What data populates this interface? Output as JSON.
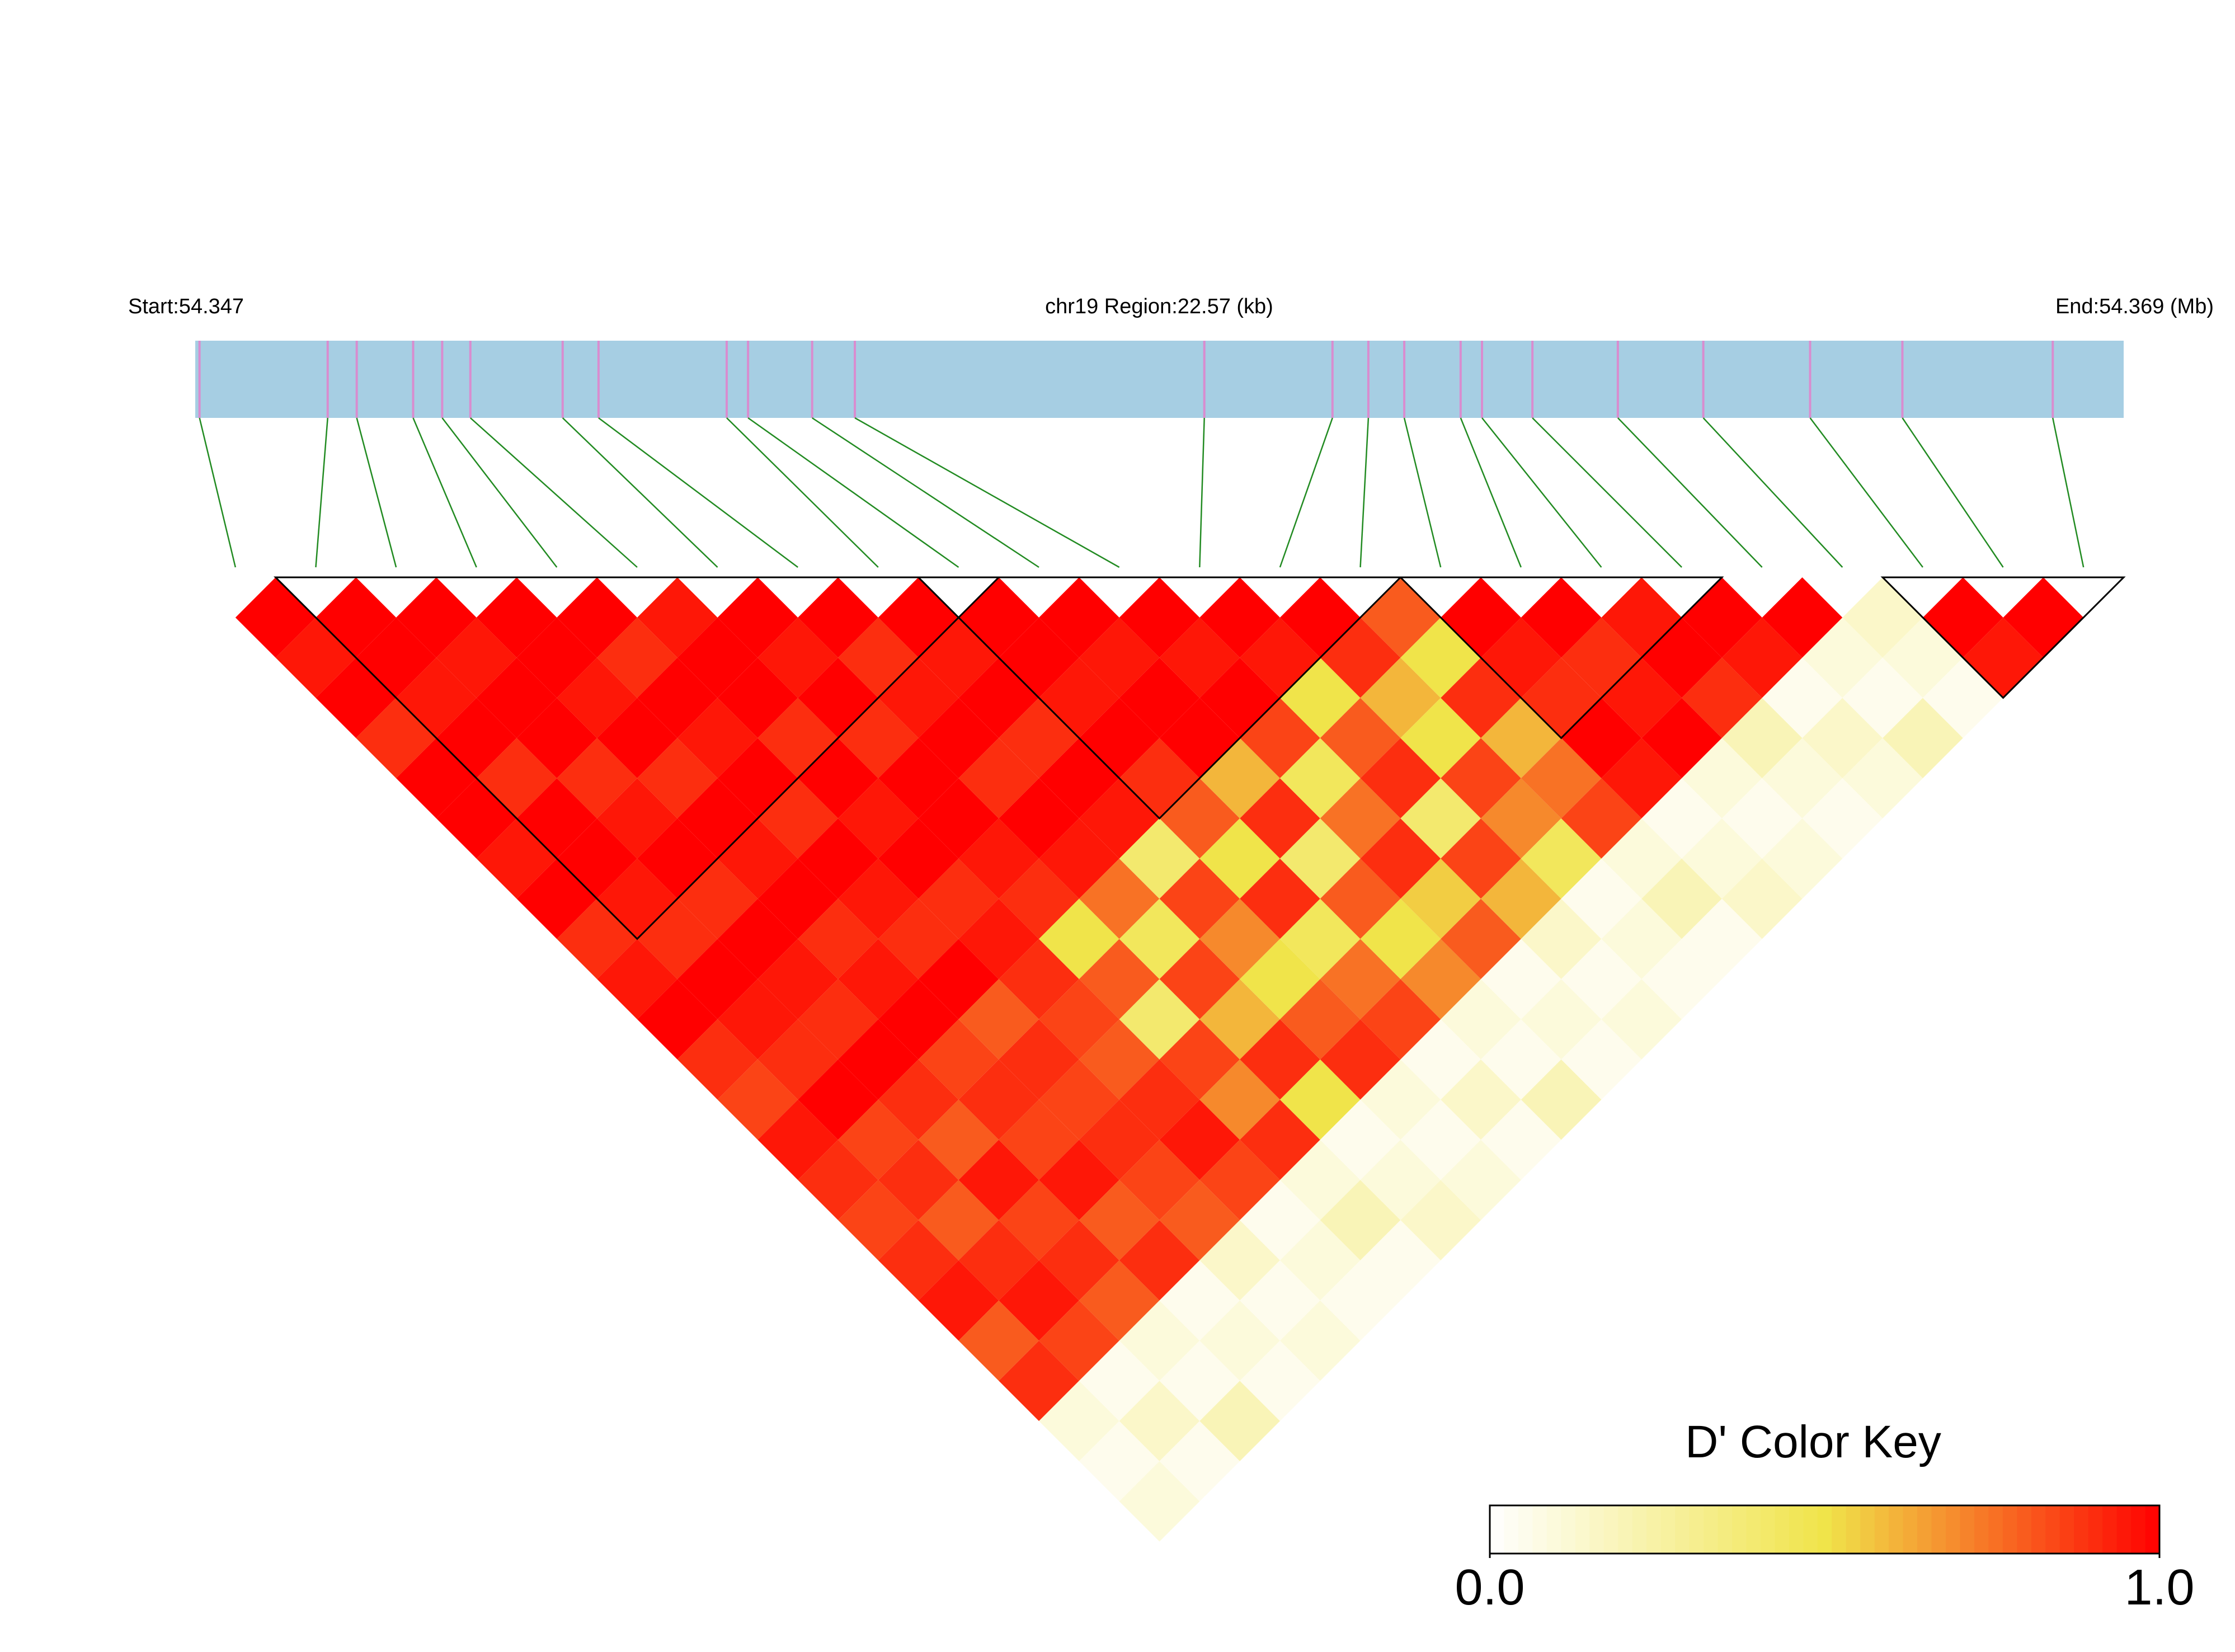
{
  "chart_data": {
    "type": "ld_heatmap",
    "start_label": "Start:54.347",
    "region_label": "chr19 Region:22.57 (kb)",
    "end_label": "End:54.369 (Mb)",
    "key_title": "D' Color Key",
    "xlim": [
      54.347,
      54.36957
    ],
    "snp_positions": [
      54.34705,
      54.34855,
      54.34889,
      54.34955,
      54.34989,
      54.35022,
      54.3513,
      54.35172,
      54.35322,
      54.35347,
      54.35422,
      54.35472,
      54.35881,
      54.36031,
      54.36073,
      54.36115,
      54.36181,
      54.36206,
      54.36265,
      54.36365,
      54.36465,
      54.3659,
      54.36698,
      54.36874
    ],
    "ld": [
      [
        1,
        0.95,
        1,
        0.9,
        1,
        1,
        0.95,
        1,
        0.9,
        0.95,
        1,
        0.9,
        0.85,
        0.95,
        0.9,
        0.85,
        0.9,
        0.95,
        0.8,
        0.9,
        0.1,
        0.05,
        0.1
      ],
      [
        1,
        1,
        0.95,
        1,
        0.9,
        1,
        1,
        0.95,
        0.9,
        1,
        0.95,
        0.9,
        1,
        0.85,
        0.9,
        0.8,
        0.9,
        0.95,
        0.85,
        0.05,
        0.15,
        0.05
      ],
      [
        1,
        0.95,
        1,
        1,
        0.9,
        0.95,
        1,
        0.9,
        1,
        0.95,
        0.9,
        1,
        0.9,
        0.8,
        0.95,
        0.85,
        0.9,
        0.8,
        0.1,
        0.05,
        0.2
      ],
      [
        1,
        1,
        0.95,
        1,
        0.9,
        1,
        0.95,
        1,
        0.9,
        0.95,
        1,
        0.85,
        0.9,
        0.85,
        0.95,
        0.8,
        0.9,
        0.05,
        0.1,
        0.05
      ],
      [
        1,
        0.9,
        1,
        0.95,
        1,
        0.9,
        1,
        0.95,
        0.9,
        1,
        0.8,
        0.9,
        0.85,
        0.9,
        0.85,
        0.8,
        0.15,
        0.05,
        0.1
      ],
      [
        0.95,
        1,
        1,
        0.9,
        1,
        0.95,
        1,
        0.9,
        0.95,
        0.9,
        0.85,
        0.8,
        0.9,
        0.95,
        0.85,
        0.05,
        0.1,
        0.05
      ],
      [
        1,
        0.95,
        1,
        0.9,
        1,
        1,
        0.95,
        0.9,
        0.5,
        0.8,
        0.4,
        0.85,
        0.7,
        0.9,
        0.1,
        0.2,
        0.05
      ],
      [
        1,
        0.9,
        0.95,
        1,
        0.9,
        1,
        0.95,
        0.75,
        0.45,
        0.85,
        0.6,
        0.9,
        0.5,
        0.05,
        0.1,
        0.15
      ],
      [
        1,
        0.95,
        1,
        0.9,
        1,
        0.95,
        0.4,
        0.85,
        0.7,
        0.5,
        0.8,
        0.9,
        0.1,
        0.05,
        0.1
      ],
      [
        1,
        1,
        0.95,
        1,
        0.9,
        0.8,
        0.5,
        0.9,
        0.45,
        0.75,
        0.85,
        0.05,
        0.15,
        0.05
      ],
      [
        1,
        0.95,
        1,
        1,
        0.6,
        0.9,
        0.4,
        0.8,
        0.5,
        0.7,
        0.1,
        0.05,
        0.2
      ],
      [
        1,
        0.95,
        1,
        0.85,
        0.45,
        0.75,
        0.9,
        0.55,
        0.8,
        0.05,
        0.1,
        0.05
      ],
      [
        1,
        0.95,
        0.5,
        0.8,
        0.9,
        0.4,
        0.85,
        0.6,
        0.15,
        0.05,
        0.1
      ],
      [
        1,
        0.9,
        0.6,
        0.5,
        0.85,
        0.7,
        0.45,
        0.05,
        0.1,
        0.05
      ],
      [
        0.8,
        0.5,
        0.9,
        0.6,
        0.75,
        0.85,
        0.1,
        0.2,
        0.05
      ],
      [
        1,
        0.95,
        0.9,
        1,
        0.95,
        0.05,
        0.1,
        0.15
      ],
      [
        1,
        0.9,
        0.95,
        1,
        0.1,
        0.05,
        0.1
      ],
      [
        0.95,
        1,
        0.9,
        0.2,
        0.1,
        0.05
      ],
      [
        1,
        0.95,
        0.05,
        0.15,
        0.1
      ],
      [
        1,
        0.1,
        0.05,
        0.2
      ],
      [
        0.15,
        0.1,
        0.05
      ],
      [
        1,
        0.95
      ],
      [
        1
      ]
    ],
    "blocks": [
      [
        1,
        9
      ],
      [
        9,
        14
      ],
      [
        15,
        18
      ],
      [
        21,
        23
      ]
    ],
    "zlim": [
      0,
      1
    ],
    "key_ticks": [
      {
        "value": 0,
        "label": "0.0"
      },
      {
        "value": 1,
        "label": "1.0"
      }
    ],
    "colors": [
      "#ffffff",
      "#f0e44a",
      "#ff0000"
    ],
    "track_color": "#a6cee3",
    "snp_color": "#d98ccf",
    "connector_color": "#228b22"
  }
}
